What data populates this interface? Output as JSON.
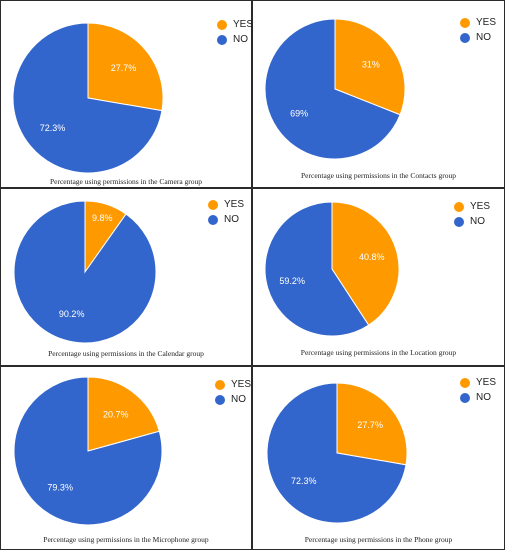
{
  "colors": {
    "yes": "#ff9900",
    "no": "#3366cc",
    "border": "#2b2b2b"
  },
  "chart_data": [
    {
      "type": "pie",
      "title": "Percentage using permissions in the Camera group",
      "slices": [
        {
          "label": "YES",
          "value": 27.7,
          "text": "27.7%"
        },
        {
          "label": "NO",
          "value": 72.3,
          "text": "72.3%"
        }
      ],
      "legend": [
        "YES",
        "NO"
      ],
      "legend_position": "top-right"
    },
    {
      "type": "pie",
      "title": "Percentage using permissions in the Contacts group",
      "slices": [
        {
          "label": "YES",
          "value": 31,
          "text": "31%"
        },
        {
          "label": "NO",
          "value": 69,
          "text": "69%"
        }
      ],
      "legend": [
        "YES",
        "NO"
      ],
      "legend_position": "top-right"
    },
    {
      "type": "pie",
      "title": "Percentage using permissions in the Calendar group",
      "slices": [
        {
          "label": "YES",
          "value": 9.8,
          "text": "9.8%"
        },
        {
          "label": "NO",
          "value": 90.2,
          "text": "90.2%"
        }
      ],
      "legend": [
        "YES",
        "NO"
      ],
      "legend_position": "top-right"
    },
    {
      "type": "pie",
      "title": "Percentage using permissions in the Location group",
      "slices": [
        {
          "label": "YES",
          "value": 40.8,
          "text": "40.8%"
        },
        {
          "label": "NO",
          "value": 59.2,
          "text": "59.2%"
        }
      ],
      "legend": [
        "YES",
        "NO"
      ],
      "legend_position": "top-right"
    },
    {
      "type": "pie",
      "title": "Percentage using permissions in the Microphone group",
      "slices": [
        {
          "label": "YES",
          "value": 20.7,
          "text": "20.7%"
        },
        {
          "label": "NO",
          "value": 79.3,
          "text": "79.3%"
        }
      ],
      "legend": [
        "YES",
        "NO"
      ],
      "legend_position": "top-right"
    },
    {
      "type": "pie",
      "title": "Percentage using permissions in the Phone group",
      "slices": [
        {
          "label": "YES",
          "value": 27.7,
          "text": "27.7%"
        },
        {
          "label": "NO",
          "value": 72.3,
          "text": "72.3%"
        }
      ],
      "legend": [
        "YES",
        "NO"
      ],
      "legend_position": "top-right"
    }
  ]
}
